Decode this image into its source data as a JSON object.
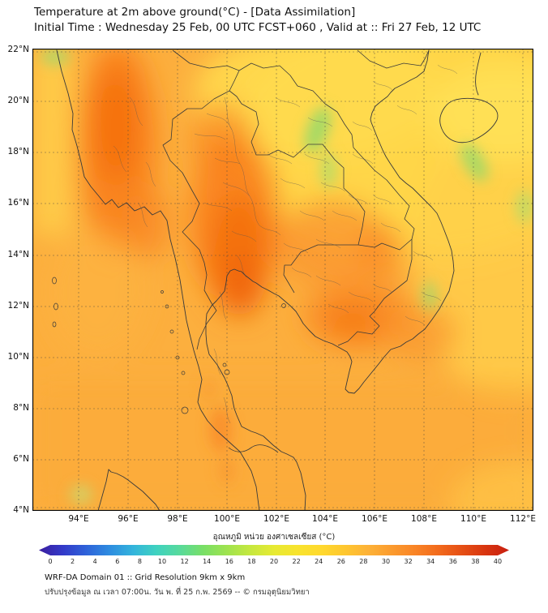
{
  "header": {
    "title": "Temperature at 2m above ground(°C) - [Data Assimilation]",
    "subtitle": "Initial Time : Wednesday 25 Feb, 00 UTC FCST+060 , Valid at :: Fri 27 Feb, 12 UTC"
  },
  "map": {
    "yticks": [
      "22°N",
      "20°N",
      "18°N",
      "16°N",
      "14°N",
      "12°N",
      "10°N",
      "8°N",
      "6°N",
      "4°N"
    ],
    "xticks": [
      "94°E",
      "96°E",
      "98°E",
      "100°E",
      "102°E",
      "104°E",
      "106°E",
      "108°E",
      "110°E",
      "112°E"
    ]
  },
  "colorbar": {
    "title": "อุณหภูมิ หน่วย องศาเซลเซียส (°C)",
    "ticks": [
      0,
      2,
      4,
      6,
      8,
      10,
      12,
      14,
      16,
      18,
      20,
      22,
      24,
      26,
      28,
      30,
      32,
      34,
      36,
      38,
      40
    ],
    "stops": [
      "#3b1d9e 0%",
      "#3339c8 5%",
      "#2e62d9 10%",
      "#2e8ce0 15%",
      "#33b4dc 20%",
      "#3fd2c0 25%",
      "#58da9b 30%",
      "#79df66 35%",
      "#9fe34f 40%",
      "#c6e83f 45%",
      "#e7ea33 50%",
      "#f8e32e 55%",
      "#ffd92e 60%",
      "#fec72f 65%",
      "#fdb237 70%",
      "#fb9b2e 75%",
      "#f98426 80%",
      "#f26a1c 85%",
      "#e54f15 90%",
      "#d8350f 95%",
      "#c81f11 100%"
    ]
  },
  "footer": {
    "line1": "WRF-DA Domain 01 :: Grid Resolution 9km x 9km",
    "line2": "ปรับปรุงข้อมูล ณ เวลา 07:00น. วัน พ. ที่ 25 ก.พ. 2569 -- © กรมอุตุนิยมวิทยา"
  }
}
